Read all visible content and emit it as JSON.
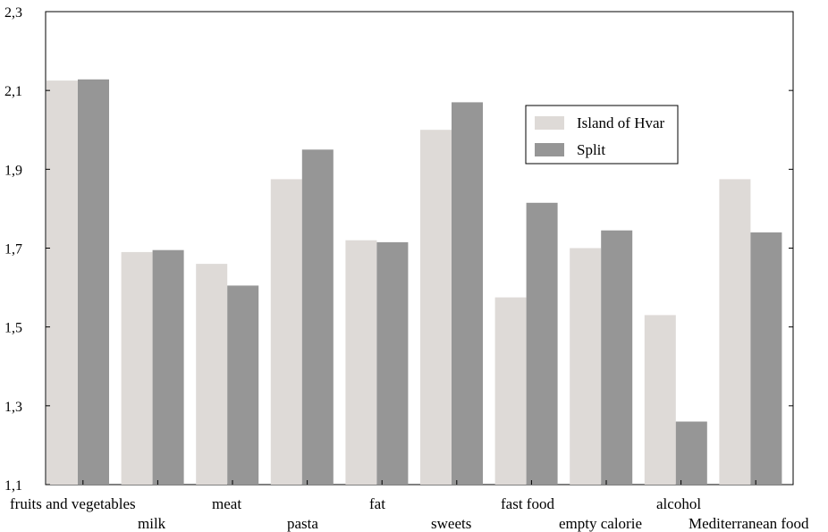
{
  "chart_data": {
    "type": "bar",
    "title": "",
    "xlabel": "",
    "ylabel": "",
    "ylim": [
      1.1,
      2.3
    ],
    "yticks": [
      "1,1",
      "1,3",
      "1,5",
      "1,7",
      "1,9",
      "2,1",
      "2,3"
    ],
    "grid": false,
    "legend_position": "top-right",
    "categories": [
      "fruits and vegetables",
      "milk",
      "meat",
      "pasta",
      "fat",
      "sweets",
      "fast food",
      "empty calorie",
      "alcohol",
      "Mediterranean food"
    ],
    "series": [
      {
        "name": "Island of Hvar",
        "color": "#dedad7",
        "values": [
          2.125,
          1.69,
          1.66,
          1.875,
          1.72,
          2.0,
          1.575,
          1.7,
          1.53,
          1.875
        ]
      },
      {
        "name": "Split",
        "color": "#969696",
        "values": [
          2.128,
          1.695,
          1.605,
          1.95,
          1.715,
          2.07,
          1.815,
          1.745,
          1.26,
          1.74
        ]
      }
    ]
  }
}
